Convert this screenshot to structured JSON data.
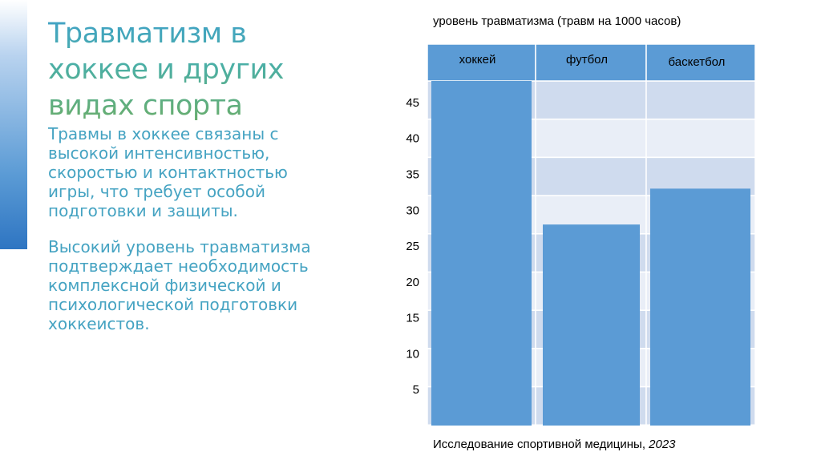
{
  "slide": {
    "title": "Травматизм в хоккее и других видах спорта",
    "paragraphs": [
      "Травмы в хоккее связаны с высокой интенсивностью, скоростью и контактностью игры, что требует особой подготовки и защиты.",
      "Высокий уровень травматизма подтверждает необходимость комплексной физической и психологической подготовки хоккеистов."
    ]
  },
  "chart_data": {
    "type": "bar",
    "title": "уровень травматизма (травм на 1000 часов)",
    "categories": [
      "хоккей",
      "футбол",
      "баскетбол"
    ],
    "values": [
      48,
      28,
      33
    ],
    "yticks": [
      5,
      10,
      15,
      20,
      25,
      30,
      35,
      40,
      45
    ],
    "ylim": [
      0,
      48
    ],
    "source_text": "Исследование спортивной медицины, ",
    "source_year": "2023",
    "grid": true,
    "colors": {
      "bar": "#5b9bd5",
      "header": "#5b9bd5",
      "row_dark": "#cfdbee",
      "row_light": "#e9eef7"
    }
  }
}
